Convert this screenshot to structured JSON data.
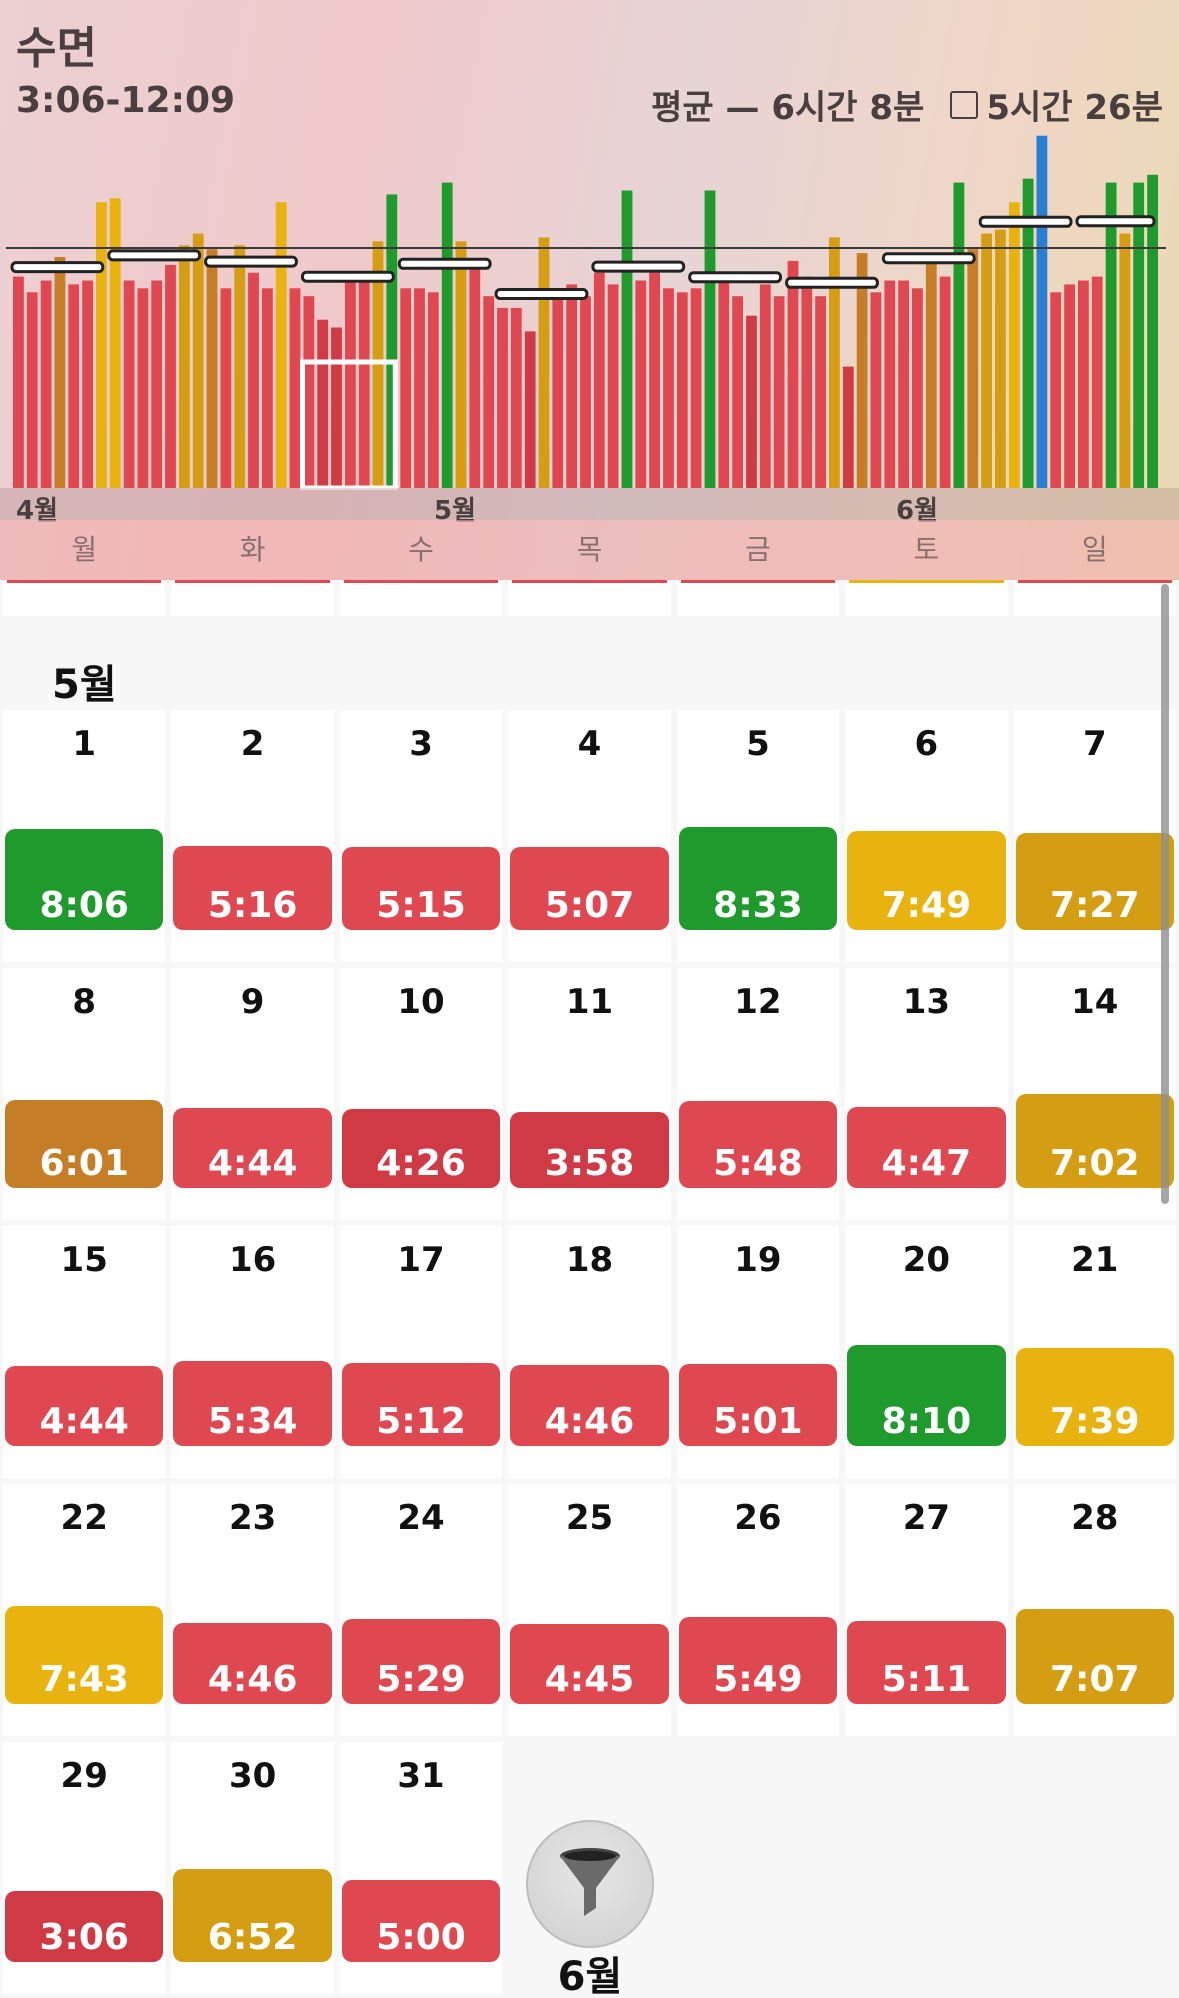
{
  "header": {
    "title": "수면",
    "range": "3:06-12:09",
    "average_label": "평균 — 6시간 8분",
    "target_label": "5시간 26분",
    "month_labels": [
      "4월",
      "5월",
      "6월"
    ],
    "weekdays": [
      "월",
      "화",
      "수",
      "목",
      "금",
      "토",
      "일"
    ]
  },
  "colors": {
    "green": "#1f9a2d",
    "yellow": "#e9b30f",
    "dark_yellow": "#d49d12",
    "orange": "#c67e26",
    "red": "#e04851",
    "dark_red": "#cf3a45",
    "blue": "#2a7fd4"
  },
  "chart_data": {
    "type": "bar",
    "series": [
      {
        "values": [
          5.4,
          5.0,
          5.3,
          5.9,
          5.2,
          5.3,
          7.3,
          7.4,
          5.3,
          5.1,
          5.3,
          5.7,
          6.2,
          6.5,
          6.1,
          5.1,
          6.2,
          5.5,
          5.1,
          7.3,
          5.1,
          4.9,
          4.3,
          4.1,
          5.3,
          5.3,
          6.3,
          7.5,
          5.1,
          5.1,
          5.0,
          7.8,
          6.3,
          5.8,
          4.9,
          4.6,
          4.6,
          4.0,
          6.4,
          4.9,
          5.2,
          4.9,
          5.5,
          5.2,
          7.6,
          5.3,
          5.8,
          5.1,
          5.0,
          5.1,
          7.6,
          5.5,
          4.9,
          4.4,
          5.2,
          4.9,
          5.8,
          5.4,
          4.9,
          6.4,
          3.1,
          6.0,
          5.0,
          5.3,
          5.3,
          5.1,
          6.0,
          5.4,
          7.8,
          6.1,
          6.5,
          6.6,
          7.3,
          7.9,
          9.0,
          5.0,
          5.2,
          5.3,
          5.4,
          7.8,
          6.5,
          7.8,
          8.0
        ]
      }
    ],
    "average": 6.13,
    "ylim": [
      0,
      10
    ]
  },
  "calendar": {
    "month": "5월",
    "days": [
      {
        "d": "1",
        "v": "8:06",
        "c": "green"
      },
      {
        "d": "2",
        "v": "5:16",
        "c": "red"
      },
      {
        "d": "3",
        "v": "5:15",
        "c": "red"
      },
      {
        "d": "4",
        "v": "5:07",
        "c": "red"
      },
      {
        "d": "5",
        "v": "8:33",
        "c": "green"
      },
      {
        "d": "6",
        "v": "7:49",
        "c": "yellow"
      },
      {
        "d": "7",
        "v": "7:27",
        "c": "dark_yellow"
      },
      {
        "d": "8",
        "v": "6:01",
        "c": "orange"
      },
      {
        "d": "9",
        "v": "4:44",
        "c": "red"
      },
      {
        "d": "10",
        "v": "4:26",
        "c": "dark_red"
      },
      {
        "d": "11",
        "v": "3:58",
        "c": "dark_red"
      },
      {
        "d": "12",
        "v": "5:48",
        "c": "red"
      },
      {
        "d": "13",
        "v": "4:47",
        "c": "red"
      },
      {
        "d": "14",
        "v": "7:02",
        "c": "dark_yellow"
      },
      {
        "d": "15",
        "v": "4:44",
        "c": "red"
      },
      {
        "d": "16",
        "v": "5:34",
        "c": "red"
      },
      {
        "d": "17",
        "v": "5:12",
        "c": "red"
      },
      {
        "d": "18",
        "v": "4:46",
        "c": "red"
      },
      {
        "d": "19",
        "v": "5:01",
        "c": "red"
      },
      {
        "d": "20",
        "v": "8:10",
        "c": "green"
      },
      {
        "d": "21",
        "v": "7:39",
        "c": "yellow"
      },
      {
        "d": "22",
        "v": "7:43",
        "c": "yellow"
      },
      {
        "d": "23",
        "v": "4:46",
        "c": "red"
      },
      {
        "d": "24",
        "v": "5:29",
        "c": "red"
      },
      {
        "d": "25",
        "v": "4:45",
        "c": "red"
      },
      {
        "d": "26",
        "v": "5:49",
        "c": "red"
      },
      {
        "d": "27",
        "v": "5:11",
        "c": "red"
      },
      {
        "d": "28",
        "v": "7:07",
        "c": "dark_yellow"
      },
      {
        "d": "29",
        "v": "3:06",
        "c": "dark_red"
      },
      {
        "d": "30",
        "v": "6:52",
        "c": "dark_yellow"
      },
      {
        "d": "31",
        "v": "5:00",
        "c": "red"
      }
    ],
    "prev_row_colors": [
      "red",
      "red",
      "red",
      "red",
      "red",
      "yellow",
      "red"
    ]
  },
  "footer": {
    "next_month": "6월",
    "filter_icon": "funnel-icon"
  }
}
